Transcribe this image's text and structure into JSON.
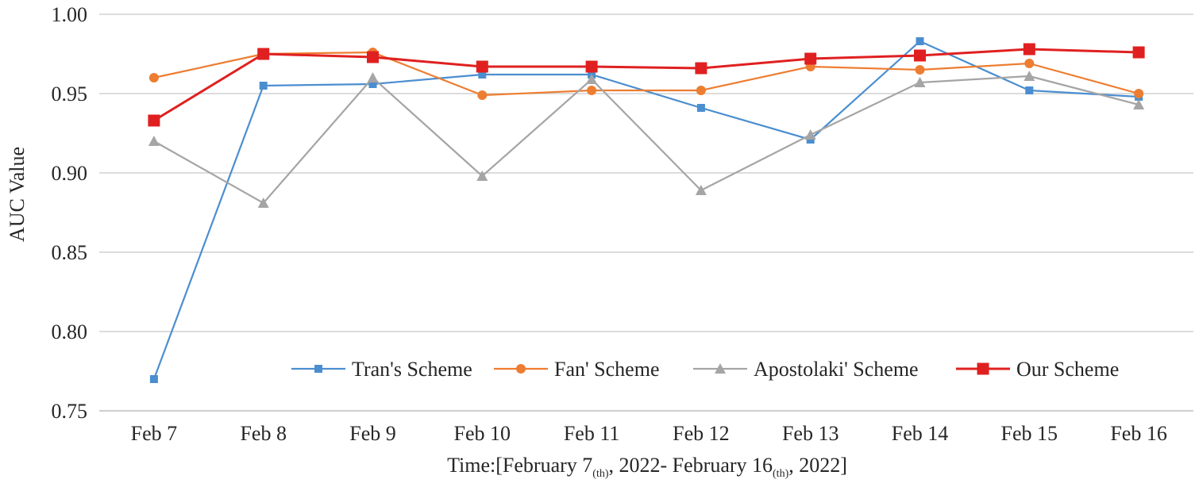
{
  "chart_data": {
    "type": "line",
    "title": "",
    "xlabel": {
      "main": "Time:[February 7",
      "sup1": "(th)",
      "mid": ", 2022- February 16",
      "sup2": "(th)",
      "end": ", 2022]"
    },
    "ylabel": "AUC Value",
    "ylim": [
      0.75,
      1.0
    ],
    "yticks": [
      "0.75",
      "0.80",
      "0.85",
      "0.90",
      "0.95",
      "1.00"
    ],
    "grid": true,
    "legend_position": "bottom-right inside",
    "categories": [
      "Feb 7",
      "Feb 8",
      "Feb 9",
      "Feb 10",
      "Feb 11",
      "Feb 12",
      "Feb 13",
      "Feb 14",
      "Feb 15",
      "Feb 16"
    ],
    "series": [
      {
        "name": "Tran's Scheme",
        "color": "#4b8ed0",
        "marker": "square-small",
        "values": [
          0.77,
          0.955,
          0.956,
          0.962,
          0.962,
          0.941,
          0.921,
          0.983,
          0.952,
          0.948
        ]
      },
      {
        "name": "Fan' Scheme",
        "color": "#ed7d31",
        "marker": "circle",
        "values": [
          0.96,
          0.975,
          0.976,
          0.949,
          0.952,
          0.952,
          0.967,
          0.965,
          0.969,
          0.95
        ]
      },
      {
        "name": "Apostolaki' Scheme",
        "color": "#a5a5a5",
        "marker": "triangle",
        "values": [
          0.92,
          0.881,
          0.96,
          0.898,
          0.959,
          0.889,
          0.924,
          0.957,
          0.961,
          0.943
        ]
      },
      {
        "name": "Our Scheme",
        "color": "#e02020",
        "marker": "square",
        "values": [
          0.933,
          0.975,
          0.973,
          0.967,
          0.967,
          0.966,
          0.972,
          0.974,
          0.978,
          0.976
        ]
      }
    ]
  }
}
